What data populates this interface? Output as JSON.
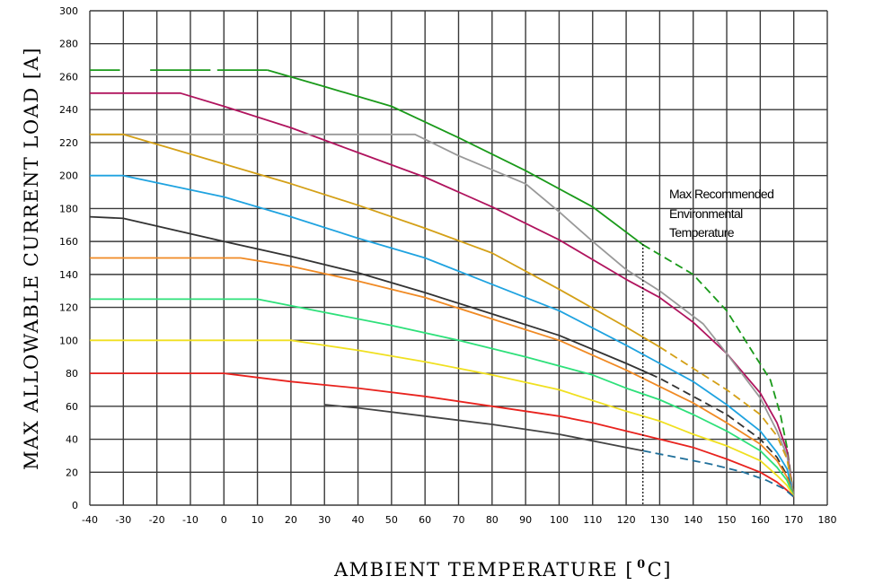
{
  "chart_data": {
    "type": "line",
    "xlabel": "AMBIENT TEMPERATURE [",
    "xlabel_unit_sup": "0",
    "xlabel_unit_end": "C]",
    "ylabel": "MAX ALLOWABLE CURRENT LOAD [A]",
    "xlim": [
      -40,
      180
    ],
    "ylim": [
      0,
      300
    ],
    "x_ticks": [
      -40,
      -30,
      -20,
      -10,
      0,
      10,
      20,
      30,
      40,
      50,
      60,
      70,
      80,
      90,
      100,
      110,
      120,
      130,
      140,
      150,
      160,
      170,
      180
    ],
    "y_ticks": [
      0,
      20,
      40,
      60,
      80,
      100,
      120,
      140,
      160,
      180,
      200,
      220,
      240,
      260,
      280,
      300
    ],
    "grid": true,
    "annotation": {
      "lines": [
        "Max Recommended",
        "Environmental",
        "Temperature"
      ],
      "x": 125
    },
    "series": [
      {
        "color": "#1a9a1a",
        "dash_prefix_until": 13,
        "dash_from": 125,
        "points": [
          [
            -40,
            264
          ],
          [
            13,
            264
          ],
          [
            30,
            254
          ],
          [
            50,
            242
          ],
          [
            70,
            223
          ],
          [
            90,
            203
          ],
          [
            110,
            181
          ],
          [
            125,
            158
          ],
          [
            140,
            140
          ],
          [
            150,
            118
          ],
          [
            158,
            92
          ],
          [
            163,
            76
          ],
          [
            166,
            55
          ],
          [
            168,
            35
          ],
          [
            170,
            5
          ]
        ]
      },
      {
        "color": "#b0145e",
        "points": [
          [
            -40,
            250
          ],
          [
            -13,
            250
          ],
          [
            0,
            242
          ],
          [
            20,
            229
          ],
          [
            40,
            214
          ],
          [
            60,
            199
          ],
          [
            80,
            181
          ],
          [
            100,
            161
          ],
          [
            120,
            137
          ],
          [
            130,
            126
          ],
          [
            140,
            111
          ],
          [
            150,
            92
          ],
          [
            160,
            68
          ],
          [
            165,
            50
          ],
          [
            168,
            33
          ],
          [
            170,
            5
          ]
        ]
      },
      {
        "color": "#999999",
        "points": [
          [
            -40,
            225
          ],
          [
            57,
            225
          ],
          [
            70,
            212
          ],
          [
            90,
            195
          ],
          [
            100,
            178
          ],
          [
            110,
            160
          ],
          [
            120,
            143
          ],
          [
            130,
            130
          ],
          [
            143,
            110
          ],
          [
            150,
            92
          ],
          [
            160,
            65
          ],
          [
            165,
            45
          ],
          [
            168,
            30
          ],
          [
            170,
            5
          ]
        ]
      },
      {
        "color": "#d4a017",
        "dash_from": 130,
        "points": [
          [
            -40,
            225
          ],
          [
            -30,
            225
          ],
          [
            -20,
            219
          ],
          [
            0,
            207
          ],
          [
            20,
            195
          ],
          [
            40,
            182
          ],
          [
            60,
            168
          ],
          [
            80,
            153
          ],
          [
            100,
            131
          ],
          [
            120,
            108
          ],
          [
            130,
            96
          ],
          [
            140,
            83
          ],
          [
            150,
            70
          ],
          [
            160,
            55
          ],
          [
            165,
            42
          ],
          [
            168,
            28
          ],
          [
            170,
            5
          ]
        ]
      },
      {
        "color": "#1fa3e0",
        "points": [
          [
            -40,
            200
          ],
          [
            -30,
            200
          ],
          [
            0,
            187
          ],
          [
            20,
            175
          ],
          [
            40,
            162
          ],
          [
            60,
            150
          ],
          [
            80,
            134
          ],
          [
            100,
            118
          ],
          [
            120,
            97
          ],
          [
            130,
            86
          ],
          [
            140,
            75
          ],
          [
            150,
            61
          ],
          [
            160,
            45
          ],
          [
            165,
            32
          ],
          [
            168,
            22
          ],
          [
            170,
            5
          ]
        ]
      },
      {
        "color": "#333333",
        "dash_from": 127,
        "points": [
          [
            -40,
            175
          ],
          [
            -30,
            174
          ],
          [
            0,
            160
          ],
          [
            20,
            151
          ],
          [
            40,
            141
          ],
          [
            60,
            129
          ],
          [
            80,
            116
          ],
          [
            100,
            103
          ],
          [
            120,
            86
          ],
          [
            130,
            77
          ],
          [
            140,
            66
          ],
          [
            150,
            55
          ],
          [
            160,
            40
          ],
          [
            165,
            29
          ],
          [
            168,
            18
          ],
          [
            170,
            5
          ]
        ]
      },
      {
        "color": "#f08a24",
        "points": [
          [
            -40,
            150
          ],
          [
            5,
            150
          ],
          [
            20,
            145
          ],
          [
            40,
            136
          ],
          [
            60,
            126
          ],
          [
            80,
            113
          ],
          [
            100,
            100
          ],
          [
            120,
            82
          ],
          [
            130,
            72
          ],
          [
            140,
            62
          ],
          [
            150,
            50
          ],
          [
            160,
            37
          ],
          [
            165,
            27
          ],
          [
            168,
            17
          ],
          [
            170,
            5
          ]
        ]
      },
      {
        "color": "#2ee07a",
        "points": [
          [
            -40,
            125
          ],
          [
            10,
            125
          ],
          [
            30,
            117
          ],
          [
            50,
            109
          ],
          [
            70,
            100
          ],
          [
            90,
            90
          ],
          [
            110,
            79
          ],
          [
            120,
            71
          ],
          [
            130,
            64
          ],
          [
            140,
            55
          ],
          [
            150,
            45
          ],
          [
            160,
            33
          ],
          [
            165,
            23
          ],
          [
            168,
            15
          ],
          [
            170,
            5
          ]
        ]
      },
      {
        "color": "#f0e020",
        "points": [
          [
            -40,
            100
          ],
          [
            20,
            100
          ],
          [
            40,
            94
          ],
          [
            60,
            87
          ],
          [
            80,
            79
          ],
          [
            100,
            70
          ],
          [
            120,
            57
          ],
          [
            130,
            51
          ],
          [
            140,
            43
          ],
          [
            150,
            36
          ],
          [
            160,
            27
          ],
          [
            165,
            18
          ],
          [
            168,
            12
          ],
          [
            170,
            5
          ]
        ]
      },
      {
        "color": "#e8231e",
        "points": [
          [
            -40,
            80
          ],
          [
            0,
            80
          ],
          [
            20,
            75
          ],
          [
            40,
            71
          ],
          [
            60,
            66
          ],
          [
            80,
            60
          ],
          [
            100,
            54
          ],
          [
            110,
            50
          ],
          [
            120,
            45
          ],
          [
            130,
            40
          ],
          [
            140,
            35
          ],
          [
            150,
            28
          ],
          [
            160,
            20
          ],
          [
            165,
            14
          ],
          [
            168,
            9
          ],
          [
            170,
            5
          ]
        ]
      },
      {
        "color": "#444444",
        "dash_from": 125,
        "dash_color": "#1f6f9a",
        "points": [
          [
            30,
            61
          ],
          [
            40,
            59
          ],
          [
            60,
            54
          ],
          [
            80,
            49
          ],
          [
            100,
            43
          ],
          [
            110,
            39
          ],
          [
            120,
            35
          ],
          [
            125,
            33
          ],
          [
            135,
            29
          ],
          [
            145,
            25
          ],
          [
            155,
            20
          ],
          [
            162,
            15
          ],
          [
            167,
            10
          ],
          [
            170,
            5
          ]
        ]
      }
    ]
  }
}
